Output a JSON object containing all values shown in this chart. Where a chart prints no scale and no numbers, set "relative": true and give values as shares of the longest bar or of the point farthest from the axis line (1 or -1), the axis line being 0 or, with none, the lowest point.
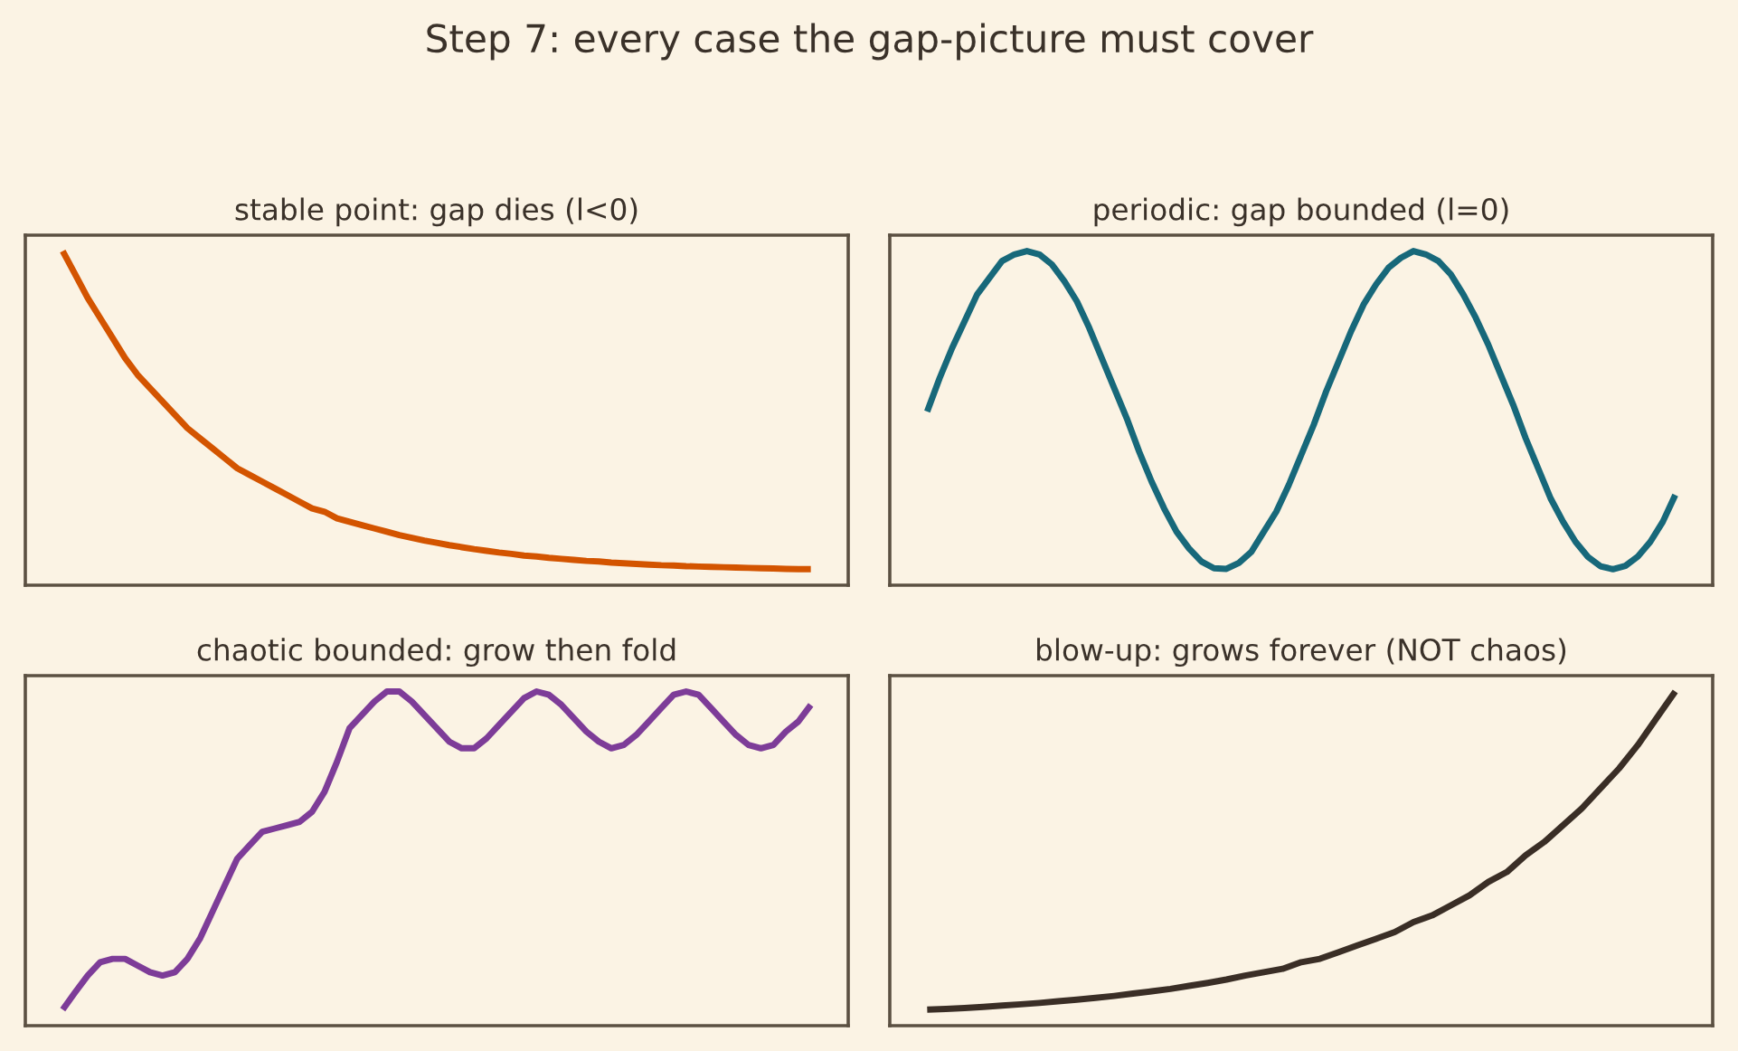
{
  "chart_data": [
    {
      "type": "other",
      "title": "Step 7: every case the gap-picture must cover"
    },
    {
      "type": "line",
      "title": "stable point: gap dies (l<0)",
      "relative": true,
      "categories": [
        null,
        null,
        null,
        null,
        null,
        null,
        null,
        null,
        null,
        null,
        null,
        null,
        null,
        null,
        null,
        null,
        null,
        null,
        null,
        null,
        null,
        null,
        null,
        null,
        null,
        null,
        null,
        null,
        null,
        null,
        null,
        null,
        null,
        null,
        null,
        null,
        null,
        null,
        null,
        null,
        null,
        null,
        null,
        null,
        null,
        null,
        null,
        null,
        null,
        null,
        null,
        null,
        null,
        null,
        null,
        null,
        null,
        null,
        null,
        null,
        null
      ],
      "series": [
        {
          "color": "#d35400",
          "values": [
            1.0,
            0.93,
            0.86,
            0.8,
            0.74,
            0.68,
            0.63,
            0.59,
            0.55,
            0.51,
            0.47,
            0.44,
            0.41,
            0.38,
            0.35,
            0.33,
            0.31,
            0.29,
            0.27,
            0.25,
            0.23,
            0.22,
            0.2,
            0.19,
            0.18,
            0.17,
            0.16,
            0.15,
            0.142,
            0.134,
            0.127,
            0.12,
            0.114,
            0.108,
            0.103,
            0.098,
            0.094,
            0.089,
            0.086,
            0.082,
            0.079,
            0.076,
            0.073,
            0.071,
            0.068,
            0.066,
            0.064,
            0.062,
            0.06,
            0.059,
            0.057,
            0.056,
            0.055,
            0.054,
            0.053,
            0.052,
            0.051,
            0.05,
            0.049,
            0.048,
            0.048
          ]
        }
      ]
    },
    {
      "type": "line",
      "title": "periodic: gap bounded (l=0)",
      "relative": true,
      "categories": [
        null,
        null,
        null,
        null,
        null,
        null,
        null,
        null,
        null,
        null,
        null,
        null,
        null,
        null,
        null,
        null,
        null,
        null,
        null,
        null,
        null,
        null,
        null,
        null,
        null,
        null,
        null,
        null,
        null,
        null,
        null,
        null,
        null,
        null,
        null,
        null,
        null,
        null,
        null,
        null,
        null,
        null,
        null,
        null,
        null,
        null,
        null,
        null,
        null,
        null,
        null,
        null,
        null,
        null,
        null,
        null,
        null,
        null,
        null,
        null,
        null
      ],
      "series": [
        {
          "color": "#17687a",
          "values": [
            0.52,
            0.62,
            0.71,
            0.79,
            0.87,
            0.92,
            0.97,
            0.99,
            1.0,
            0.99,
            0.96,
            0.91,
            0.85,
            0.77,
            0.68,
            0.59,
            0.5,
            0.4,
            0.31,
            0.23,
            0.16,
            0.11,
            0.071,
            0.051,
            0.049,
            0.067,
            0.1,
            0.16,
            0.22,
            0.3,
            0.39,
            0.48,
            0.58,
            0.67,
            0.76,
            0.84,
            0.9,
            0.95,
            0.98,
            1.0,
            0.99,
            0.97,
            0.93,
            0.87,
            0.8,
            0.72,
            0.63,
            0.54,
            0.44,
            0.35,
            0.26,
            0.19,
            0.13,
            0.085,
            0.057,
            0.048,
            0.058,
            0.086,
            0.13,
            0.19,
            0.27
          ]
        }
      ]
    },
    {
      "type": "line",
      "title": "chaotic bounded: grow then fold",
      "relative": true,
      "categories": [
        null,
        null,
        null,
        null,
        null,
        null,
        null,
        null,
        null,
        null,
        null,
        null,
        null,
        null,
        null,
        null,
        null,
        null,
        null,
        null,
        null,
        null,
        null,
        null,
        null,
        null,
        null,
        null,
        null,
        null,
        null,
        null,
        null,
        null,
        null,
        null,
        null,
        null,
        null,
        null,
        null,
        null,
        null,
        null,
        null,
        null,
        null,
        null,
        null,
        null,
        null,
        null,
        null,
        null,
        null,
        null,
        null,
        null,
        null,
        null,
        null
      ],
      "series": [
        {
          "color": "#7d3c98",
          "values": [
            0.048,
            0.1,
            0.15,
            0.19,
            0.2,
            0.2,
            0.18,
            0.16,
            0.15,
            0.16,
            0.2,
            0.26,
            0.34,
            0.42,
            0.5,
            0.54,
            0.58,
            0.59,
            0.6,
            0.61,
            0.64,
            0.7,
            0.79,
            0.89,
            0.93,
            0.97,
            1.0,
            1.0,
            0.97,
            0.93,
            0.89,
            0.85,
            0.83,
            0.83,
            0.86,
            0.9,
            0.94,
            0.98,
            1.0,
            0.99,
            0.96,
            0.92,
            0.88,
            0.85,
            0.83,
            0.84,
            0.87,
            0.91,
            0.95,
            0.99,
            1.0,
            0.99,
            0.95,
            0.91,
            0.87,
            0.84,
            0.83,
            0.84,
            0.88,
            0.91,
            0.96
          ]
        }
      ]
    },
    {
      "type": "line",
      "title": "blow-up: grows forever (NOT chaos)",
      "relative": true,
      "categories": [
        null,
        null,
        null,
        null,
        null,
        null,
        null,
        null,
        null,
        null,
        null,
        null,
        null,
        null,
        null,
        null,
        null,
        null,
        null,
        null,
        null,
        null,
        null,
        null,
        null,
        null,
        null,
        null,
        null,
        null,
        null,
        null,
        null,
        null,
        null,
        null,
        null,
        null,
        null,
        null,
        null
      ],
      "series": [
        {
          "color": "#3a2e26",
          "values": [
            0.048,
            0.05,
            0.053,
            0.056,
            0.06,
            0.064,
            0.068,
            0.073,
            0.078,
            0.083,
            0.089,
            0.096,
            0.103,
            0.11,
            0.119,
            0.128,
            0.138,
            0.15,
            0.16,
            0.17,
            0.19,
            0.2,
            0.22,
            0.24,
            0.26,
            0.28,
            0.31,
            0.33,
            0.36,
            0.39,
            0.43,
            0.46,
            0.51,
            0.55,
            0.6,
            0.65,
            0.71,
            0.77,
            0.84,
            0.92,
            1.0
          ]
        }
      ]
    }
  ]
}
